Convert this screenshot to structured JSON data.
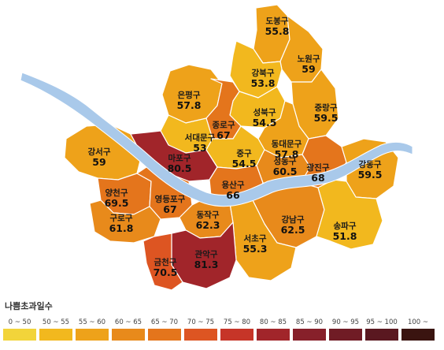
{
  "legend": {
    "title": "나쁨초과일수",
    "bins": [
      {
        "label": "0 ~ 50",
        "color": "#f2d43a"
      },
      {
        "label": "50 ~ 55",
        "color": "#f2b81e"
      },
      {
        "label": "55 ~ 60",
        "color": "#eea21a"
      },
      {
        "label": "60 ~ 65",
        "color": "#e88a1b"
      },
      {
        "label": "65 ~ 70",
        "color": "#e4751c"
      },
      {
        "label": "70 ~ 75",
        "color": "#dd5522"
      },
      {
        "label": "75 ~ 80",
        "color": "#c63528"
      },
      {
        "label": "80 ~ 85",
        "color": "#a1252a"
      },
      {
        "label": "85 ~ 90",
        "color": "#87202a"
      },
      {
        "label": "90 ~ 95",
        "color": "#701c25"
      },
      {
        "label": "95 ~ 100",
        "color": "#5a1820"
      },
      {
        "label": "100 ~",
        "color": "#3a1410"
      }
    ]
  },
  "colors": {
    "river": "#a9c9ea",
    "border": "#ffffff"
  },
  "districts": [
    {
      "name": "도봉구",
      "value": "55.8"
    },
    {
      "name": "노원구",
      "value": "59"
    },
    {
      "name": "강북구",
      "value": "53.8"
    },
    {
      "name": "은평구",
      "value": "57.8"
    },
    {
      "name": "성북구",
      "value": "54.5"
    },
    {
      "name": "중랑구",
      "value": "59.5"
    },
    {
      "name": "종로구",
      "value": "67"
    },
    {
      "name": "서대문구",
      "value": "53"
    },
    {
      "name": "동대문구",
      "value": "57.8"
    },
    {
      "name": "강서구",
      "value": "59"
    },
    {
      "name": "마포구",
      "value": "80.5"
    },
    {
      "name": "중구",
      "value": "54.5"
    },
    {
      "name": "성동구",
      "value": "60.5"
    },
    {
      "name": "광진구",
      "value": "68"
    },
    {
      "name": "강동구",
      "value": "59.5"
    },
    {
      "name": "용산구",
      "value": "66"
    },
    {
      "name": "양천구",
      "value": "69.5"
    },
    {
      "name": "영등포구",
      "value": "67"
    },
    {
      "name": "구로구",
      "value": "61.8"
    },
    {
      "name": "동작구",
      "value": "62.3"
    },
    {
      "name": "강남구",
      "value": "62.5"
    },
    {
      "name": "송파구",
      "value": "51.8"
    },
    {
      "name": "서초구",
      "value": "55.3"
    },
    {
      "name": "관악구",
      "value": "81.3"
    },
    {
      "name": "금천구",
      "value": "70.5"
    }
  ]
}
